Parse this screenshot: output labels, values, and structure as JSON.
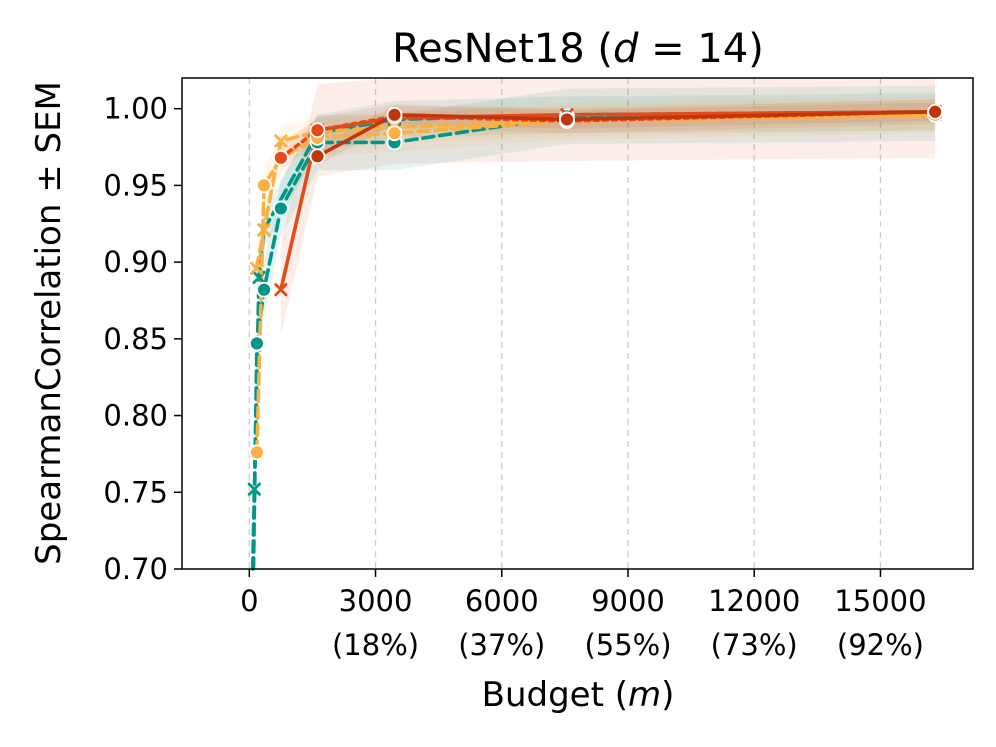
{
  "chart_data": {
    "type": "line",
    "title_main": "ResNet18 (",
    "title_var": "d",
    "title_rest": " = 14)",
    "xlabel_main": "Budget (",
    "xlabel_var": "m",
    "xlabel_end": ")",
    "ylabel": "SpearmanCorrelation ± SEM",
    "xlim": [
      -1600,
      17200
    ],
    "ylim": [
      0.7,
      1.02
    ],
    "grid": "x-dashed",
    "xticks": [
      {
        "value": 0,
        "label": "0",
        "sub": ""
      },
      {
        "value": 3000,
        "label": "3000",
        "sub": "(18%)"
      },
      {
        "value": 6000,
        "label": "6000",
        "sub": "(37%)"
      },
      {
        "value": 9000,
        "label": "9000",
        "sub": "(55%)"
      },
      {
        "value": 12000,
        "label": "12000",
        "sub": "(73%)"
      },
      {
        "value": 15000,
        "label": "15000",
        "sub": "(92%)"
      }
    ],
    "yticks": [
      {
        "value": 0.7,
        "label": "0.70"
      },
      {
        "value": 0.75,
        "label": "0.75"
      },
      {
        "value": 0.8,
        "label": "0.80"
      },
      {
        "value": 0.85,
        "label": "0.85"
      },
      {
        "value": 0.9,
        "label": "0.90"
      },
      {
        "value": 0.95,
        "label": "0.95"
      },
      {
        "value": 1.0,
        "label": "1.00"
      }
    ],
    "series": [
      {
        "color": "#009688",
        "marker": "x",
        "dash": "11 6",
        "band": 0.012,
        "x": [
          80,
          120,
          230,
          350,
          1620,
          3450,
          7550,
          16300
        ],
        "y": [
          0.6,
          0.752,
          0.89,
          0.921,
          0.984,
          0.993,
          0.996,
          0.998
        ]
      },
      {
        "color": "#009688",
        "marker": "o",
        "dash": "11 6",
        "band": 0.018,
        "x": [
          100,
          180,
          350,
          750,
          1620,
          3450,
          7550,
          16300
        ],
        "y": [
          0.6,
          0.847,
          0.882,
          0.935,
          0.978,
          0.978,
          0.995,
          0.997
        ]
      },
      {
        "color": "#FBB040",
        "marker": "x",
        "dash": "11 6",
        "band": 0.01,
        "x": [
          170,
          350,
          750,
          1620,
          3450,
          7550,
          16300
        ],
        "y": [
          0.896,
          0.921,
          0.979,
          0.985,
          0.988,
          0.992,
          0.996
        ]
      },
      {
        "color": "#FBB040",
        "marker": "o",
        "dash": "11 6",
        "band": 0.012,
        "x": [
          180,
          350,
          750,
          1620,
          3450,
          7550,
          16300
        ],
        "y": [
          0.776,
          0.95,
          0.968,
          0.981,
          0.984,
          0.992,
          0.996
        ]
      },
      {
        "color": "#E64A19",
        "marker": "x",
        "dash": "",
        "band": 0.03,
        "x": [
          750,
          1620,
          3450,
          7550,
          16300
        ],
        "y": [
          0.882,
          0.986,
          0.994,
          0.996,
          0.998
        ]
      },
      {
        "color": "#E64A19",
        "marker": "o",
        "dash": "4 5",
        "band": 0.008,
        "x": [
          750,
          1620,
          3450,
          7550,
          16300
        ],
        "y": [
          0.968,
          0.986,
          0.995,
          0.992,
          0.998
        ]
      },
      {
        "color": "#BF360C",
        "marker": "o",
        "dash": "",
        "band": 0.006,
        "x": [
          1620,
          3450,
          7550,
          16300
        ],
        "y": [
          0.969,
          0.996,
          0.993,
          0.998
        ]
      }
    ]
  }
}
